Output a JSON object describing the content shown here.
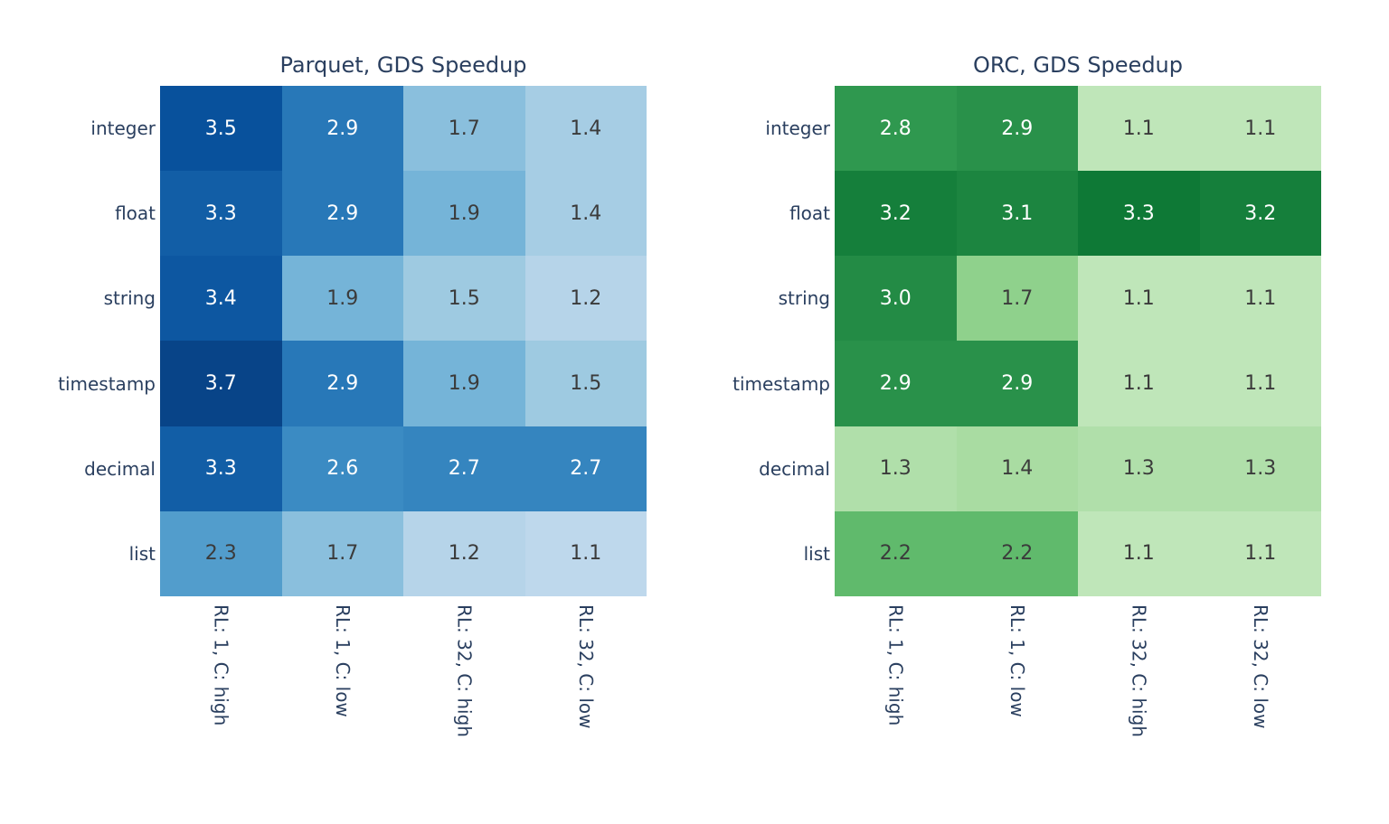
{
  "figure": {
    "background_color": "#ffffff",
    "axis_text_color": "#2a3f5f",
    "cell_text_dark": "#3b3b3b",
    "cell_text_light": "#ffffff"
  },
  "chart_data": [
    {
      "type": "heatmap",
      "title": "Parquet, GDS Speedup",
      "rows": [
        "integer",
        "float",
        "string",
        "timestamp",
        "decimal",
        "list"
      ],
      "columns": [
        "RL: 1, C: high",
        "RL: 1, C: low",
        "RL: 32, C: high",
        "RL: 32, C: low"
      ],
      "values": [
        [
          3.5,
          2.9,
          1.7,
          1.4
        ],
        [
          3.3,
          2.9,
          1.9,
          1.4
        ],
        [
          3.4,
          1.9,
          1.5,
          1.2
        ],
        [
          3.7,
          2.9,
          1.9,
          1.5
        ],
        [
          3.3,
          2.6,
          2.7,
          2.7
        ],
        [
          2.3,
          1.7,
          1.2,
          1.1
        ]
      ],
      "zmin": 0,
      "zmax": 4,
      "colorscale_name": "Blues",
      "colorscale": [
        "#f7fbff",
        "#deebf7",
        "#c6dbef",
        "#9ecae1",
        "#6baed6",
        "#4292c6",
        "#2171b5",
        "#08519c",
        "#08306b"
      ],
      "legend": "none",
      "grid_lines": "off",
      "value_decimals": 1
    },
    {
      "type": "heatmap",
      "title": "ORC, GDS Speedup",
      "rows": [
        "integer",
        "float",
        "string",
        "timestamp",
        "decimal",
        "list"
      ],
      "columns": [
        "RL: 1, C: high",
        "RL: 1, C: low",
        "RL: 32, C: high",
        "RL: 32, C: low"
      ],
      "values": [
        [
          2.8,
          2.9,
          1.1,
          1.1
        ],
        [
          3.2,
          3.1,
          3.3,
          3.2
        ],
        [
          3.0,
          1.7,
          1.1,
          1.1
        ],
        [
          2.9,
          2.9,
          1.1,
          1.1
        ],
        [
          1.3,
          1.4,
          1.3,
          1.3
        ],
        [
          2.2,
          2.2,
          1.1,
          1.1
        ]
      ],
      "zmin": 0,
      "zmax": 4,
      "colorscale_name": "Greens",
      "colorscale": [
        "#f7fcf5",
        "#e5f5e0",
        "#c7e9c0",
        "#a1d99b",
        "#74c476",
        "#41ab5d",
        "#238b45",
        "#006d2c",
        "#00441b"
      ],
      "legend": "none",
      "grid_lines": "off",
      "value_decimals": 1
    }
  ]
}
